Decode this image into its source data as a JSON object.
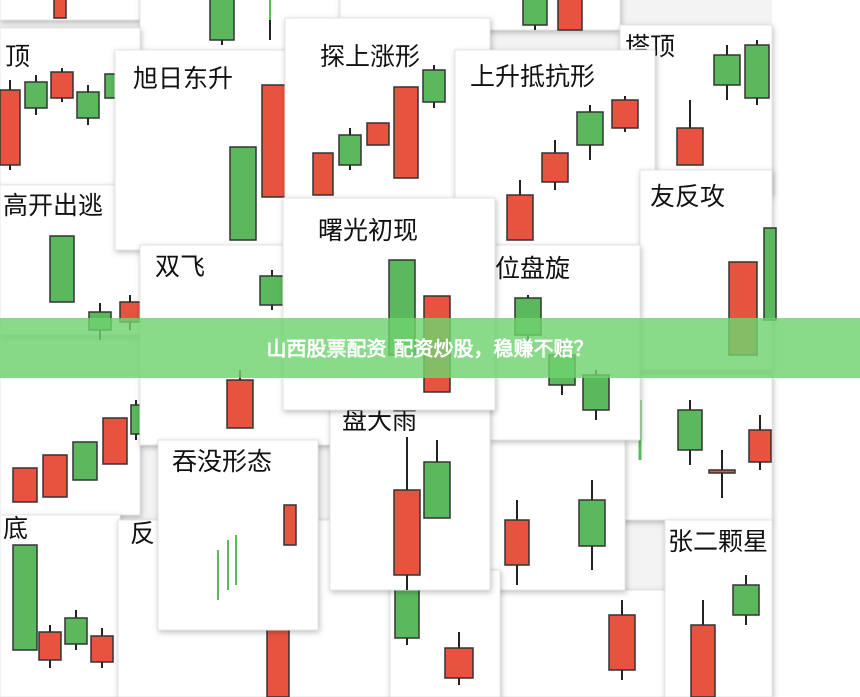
{
  "banner": {
    "text": "山西股票配资 配资炒股，稳赚不赔？"
  },
  "cards": [
    {
      "title": "顶"
    },
    {
      "title": "高开出逃"
    },
    {
      "title": "底"
    },
    {
      "title": "反"
    },
    {
      "title": "旭日东升"
    },
    {
      "title": "探上涨形"
    },
    {
      "title": "塔顶"
    },
    {
      "title": "上升抵抗形"
    },
    {
      "title": "友反攻"
    },
    {
      "title": "双飞"
    },
    {
      "title": "位盘旋"
    },
    {
      "title": "盘大雨"
    },
    {
      "title": "吞没形态"
    },
    {
      "title": "张二颗星"
    },
    {
      "title": "曙光初现"
    }
  ]
}
